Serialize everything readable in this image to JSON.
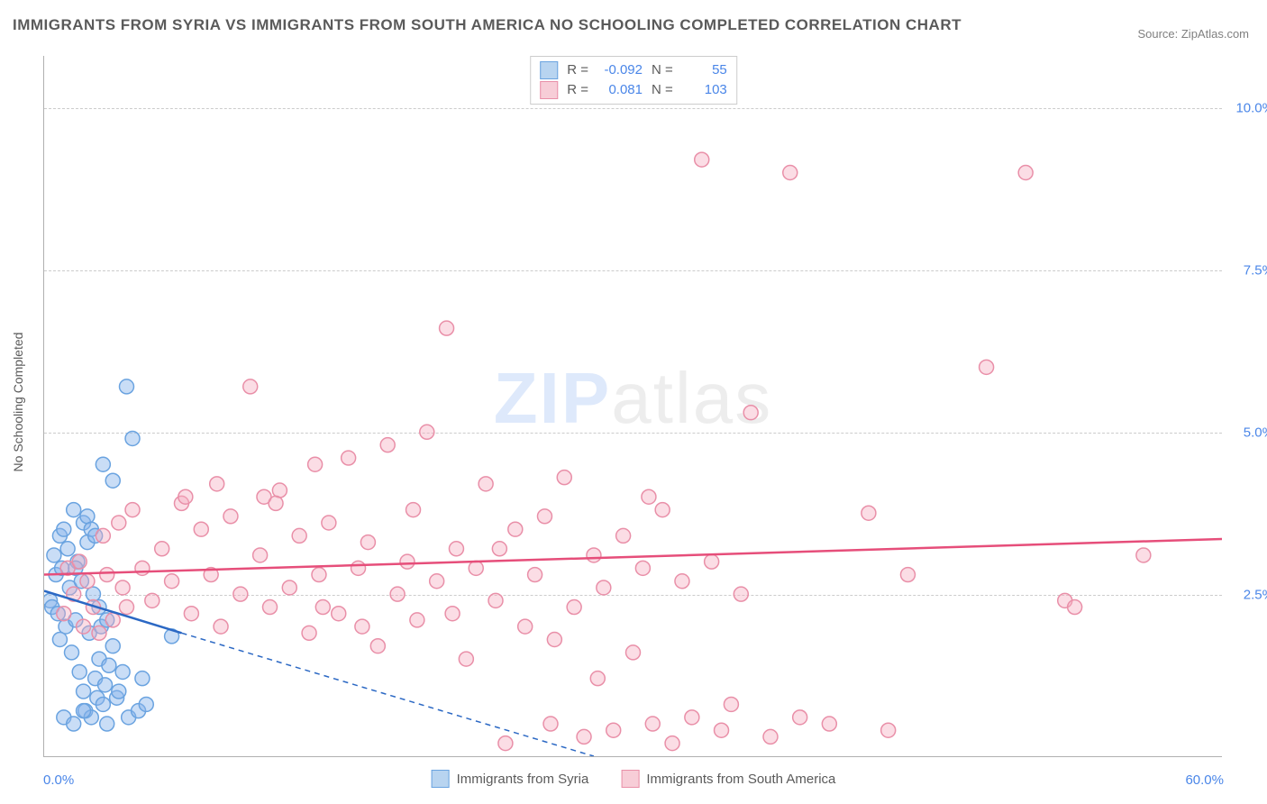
{
  "title": "IMMIGRANTS FROM SYRIA VS IMMIGRANTS FROM SOUTH AMERICA NO SCHOOLING COMPLETED CORRELATION CHART",
  "source": "Source: ZipAtlas.com",
  "ylabel": "No Schooling Completed",
  "watermark": {
    "zip": "ZIP",
    "atlas": "atlas"
  },
  "chart": {
    "type": "scatter",
    "xlim": [
      0,
      60
    ],
    "ylim": [
      0,
      10.8
    ],
    "xtick_min_label": "0.0%",
    "xtick_max_label": "60.0%",
    "yticks": [
      {
        "v": 2.5,
        "label": "2.5%"
      },
      {
        "v": 5.0,
        "label": "5.0%"
      },
      {
        "v": 7.5,
        "label": "7.5%"
      },
      {
        "v": 10.0,
        "label": "10.0%"
      }
    ],
    "grid_color": "#cccccc",
    "background_color": "#ffffff",
    "marker_radius": 8,
    "marker_stroke_width": 1.5,
    "trend_line_width": 2.5,
    "trend_dash": "6,5",
    "series": [
      {
        "key": "syria",
        "label": "Immigrants from Syria",
        "color_fill": "rgba(135,180,235,0.45)",
        "color_stroke": "#6aa3e0",
        "swatch_fill": "#b8d4f0",
        "swatch_border": "#6aa3e0",
        "R": "-0.092",
        "N": "55",
        "trend": {
          "x1": 0,
          "y1": 2.55,
          "x2": 7,
          "y2": 1.9,
          "ext_x2": 28,
          "ext_y2": 0.0,
          "color": "#2b68c4"
        },
        "points": [
          [
            0.3,
            2.4
          ],
          [
            0.4,
            2.3
          ],
          [
            0.5,
            3.1
          ],
          [
            0.6,
            2.8
          ],
          [
            0.7,
            2.2
          ],
          [
            0.8,
            3.4
          ],
          [
            0.9,
            2.9
          ],
          [
            1.0,
            3.5
          ],
          [
            1.1,
            2.0
          ],
          [
            1.2,
            3.2
          ],
          [
            1.3,
            2.6
          ],
          [
            1.4,
            1.6
          ],
          [
            1.5,
            3.8
          ],
          [
            1.6,
            2.1
          ],
          [
            1.7,
            3.0
          ],
          [
            1.8,
            1.3
          ],
          [
            1.9,
            2.7
          ],
          [
            2.0,
            1.0
          ],
          [
            2.1,
            0.7
          ],
          [
            2.2,
            3.3
          ],
          [
            2.3,
            1.9
          ],
          [
            2.4,
            0.6
          ],
          [
            2.5,
            2.5
          ],
          [
            2.6,
            1.2
          ],
          [
            2.7,
            0.9
          ],
          [
            2.8,
            1.5
          ],
          [
            2.9,
            2.0
          ],
          [
            3.0,
            0.8
          ],
          [
            3.1,
            1.1
          ],
          [
            3.2,
            0.5
          ],
          [
            3.3,
            1.4
          ],
          [
            3.5,
            1.7
          ],
          [
            3.7,
            0.9
          ],
          [
            3.8,
            1.0
          ],
          [
            4.0,
            1.3
          ],
          [
            4.2,
            5.7
          ],
          [
            4.3,
            0.6
          ],
          [
            4.5,
            4.9
          ],
          [
            3.0,
            4.5
          ],
          [
            3.5,
            4.25
          ],
          [
            2.0,
            3.6
          ],
          [
            2.2,
            3.7
          ],
          [
            2.4,
            3.5
          ],
          [
            2.6,
            3.4
          ],
          [
            6.5,
            1.85
          ],
          [
            4.8,
            0.7
          ],
          [
            5.0,
            1.2
          ],
          [
            5.2,
            0.8
          ],
          [
            1.0,
            0.6
          ],
          [
            1.5,
            0.5
          ],
          [
            2.0,
            0.7
          ],
          [
            0.8,
            1.8
          ],
          [
            1.6,
            2.9
          ],
          [
            2.8,
            2.3
          ],
          [
            3.2,
            2.1
          ]
        ]
      },
      {
        "key": "southamerica",
        "label": "Immigrants from South America",
        "color_fill": "rgba(245,170,190,0.40)",
        "color_stroke": "#e98fa8",
        "swatch_fill": "#f7cdd7",
        "swatch_border": "#e98fa8",
        "R": "0.081",
        "N": "103",
        "trend": {
          "x1": 0,
          "y1": 2.8,
          "x2": 60,
          "y2": 3.35,
          "color": "#e64e7a"
        },
        "points": [
          [
            1.0,
            2.2
          ],
          [
            1.2,
            2.9
          ],
          [
            1.5,
            2.5
          ],
          [
            1.8,
            3.0
          ],
          [
            2.0,
            2.0
          ],
          [
            2.2,
            2.7
          ],
          [
            2.5,
            2.3
          ],
          [
            2.8,
            1.9
          ],
          [
            3.0,
            3.4
          ],
          [
            3.2,
            2.8
          ],
          [
            3.5,
            2.1
          ],
          [
            3.8,
            3.6
          ],
          [
            4.0,
            2.6
          ],
          [
            4.5,
            3.8
          ],
          [
            5.0,
            2.9
          ],
          [
            5.5,
            2.4
          ],
          [
            6.0,
            3.2
          ],
          [
            6.5,
            2.7
          ],
          [
            7.0,
            3.9
          ],
          [
            7.5,
            2.2
          ],
          [
            8.0,
            3.5
          ],
          [
            8.5,
            2.8
          ],
          [
            9.0,
            2.0
          ],
          [
            9.5,
            3.7
          ],
          [
            10.0,
            2.5
          ],
          [
            10.5,
            5.7
          ],
          [
            11.0,
            3.1
          ],
          [
            11.5,
            2.3
          ],
          [
            12.0,
            4.1
          ],
          [
            12.5,
            2.6
          ],
          [
            13.0,
            3.4
          ],
          [
            13.5,
            1.9
          ],
          [
            14.0,
            2.8
          ],
          [
            14.5,
            3.6
          ],
          [
            15.0,
            2.2
          ],
          [
            15.5,
            4.6
          ],
          [
            16.0,
            2.9
          ],
          [
            16.5,
            3.3
          ],
          [
            17.0,
            1.7
          ],
          [
            17.5,
            4.8
          ],
          [
            18.0,
            2.5
          ],
          [
            18.5,
            3.0
          ],
          [
            19.0,
            2.1
          ],
          [
            19.5,
            5.0
          ],
          [
            20.0,
            2.7
          ],
          [
            20.5,
            6.6
          ],
          [
            21.0,
            3.2
          ],
          [
            21.5,
            1.5
          ],
          [
            22.0,
            2.9
          ],
          [
            22.5,
            4.2
          ],
          [
            23.0,
            2.4
          ],
          [
            23.5,
            0.2
          ],
          [
            24.0,
            3.5
          ],
          [
            24.5,
            2.0
          ],
          [
            25.0,
            2.8
          ],
          [
            25.5,
            3.7
          ],
          [
            26.0,
            1.8
          ],
          [
            26.5,
            4.3
          ],
          [
            27.0,
            2.3
          ],
          [
            27.5,
            0.3
          ],
          [
            28.0,
            3.1
          ],
          [
            28.5,
            2.6
          ],
          [
            29.0,
            0.4
          ],
          [
            29.5,
            3.4
          ],
          [
            30.0,
            1.6
          ],
          [
            30.5,
            2.9
          ],
          [
            31.0,
            0.5
          ],
          [
            31.5,
            3.8
          ],
          [
            32.0,
            0.2
          ],
          [
            32.5,
            2.7
          ],
          [
            33.0,
            0.6
          ],
          [
            33.5,
            9.2
          ],
          [
            34.0,
            3.0
          ],
          [
            34.5,
            0.4
          ],
          [
            35.0,
            0.8
          ],
          [
            35.5,
            2.5
          ],
          [
            36.0,
            5.3
          ],
          [
            37.0,
            0.3
          ],
          [
            38.0,
            9.0
          ],
          [
            38.5,
            0.6
          ],
          [
            40.0,
            0.5
          ],
          [
            42.0,
            3.75
          ],
          [
            43.0,
            0.4
          ],
          [
            44.0,
            2.8
          ],
          [
            48.0,
            6.0
          ],
          [
            50.0,
            9.0
          ],
          [
            52.0,
            2.4
          ],
          [
            52.5,
            2.3
          ],
          [
            56.0,
            3.1
          ],
          [
            7.2,
            4.0
          ],
          [
            8.8,
            4.2
          ],
          [
            11.2,
            4.0
          ],
          [
            13.8,
            4.5
          ],
          [
            16.2,
            2.0
          ],
          [
            18.8,
            3.8
          ],
          [
            20.8,
            2.2
          ],
          [
            23.2,
            3.2
          ],
          [
            25.8,
            0.5
          ],
          [
            28.2,
            1.2
          ],
          [
            30.8,
            4.0
          ],
          [
            11.8,
            3.9
          ],
          [
            14.2,
            2.3
          ],
          [
            4.2,
            2.3
          ]
        ]
      }
    ]
  }
}
